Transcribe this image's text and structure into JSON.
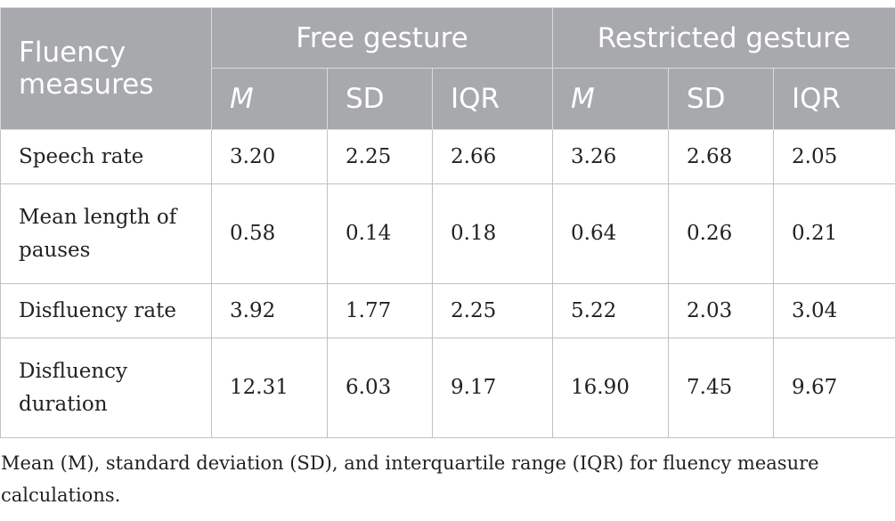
{
  "table": {
    "corner_header": "Fluency measures",
    "groups": [
      "Free gesture",
      "Restricted gesture"
    ],
    "subheaders": [
      "M",
      "SD",
      "IQR",
      "M",
      "SD",
      "IQR"
    ],
    "rows": [
      {
        "label": "Speech rate",
        "values": [
          "3.20",
          "2.25",
          "2.66",
          "3.26",
          "2.68",
          "2.05"
        ]
      },
      {
        "label": "Mean length of pauses",
        "values": [
          "0.58",
          "0.14",
          "0.18",
          "0.64",
          "0.26",
          "0.21"
        ]
      },
      {
        "label": "Disfluency rate",
        "values": [
          "3.92",
          "1.77",
          "2.25",
          "5.22",
          "2.03",
          "3.04"
        ]
      },
      {
        "label": "Disfluency duration",
        "values": [
          "12.31",
          "6.03",
          "9.17",
          "16.90",
          "7.45",
          "9.67"
        ]
      }
    ]
  },
  "note": "Mean (M), standard deviation (SD), and interquartile range (IQR) for fluency measure calculations.",
  "colors": {
    "header_bg": "#a7a9ac",
    "header_text": "#ffffff",
    "border": "#bfc1c3"
  }
}
